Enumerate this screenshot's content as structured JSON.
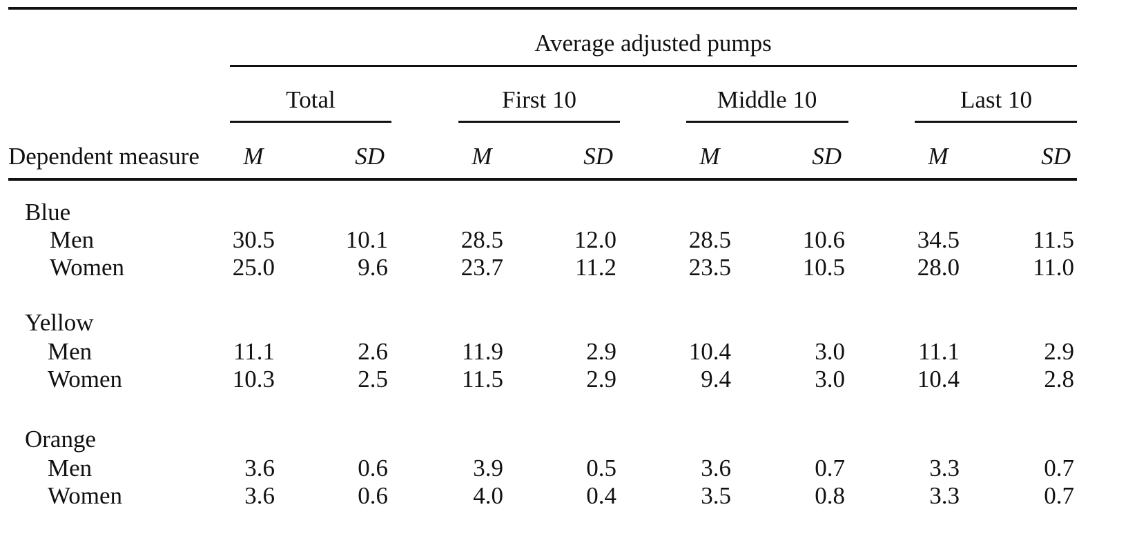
{
  "table": {
    "spanner": "Average adjusted pumps",
    "groups": [
      "Total",
      "First 10",
      "Middle 10",
      "Last 10"
    ],
    "stub_header": "Dependent measure",
    "stat_headers": [
      "M",
      "SD",
      "M",
      "SD",
      "M",
      "SD",
      "M",
      "SD"
    ],
    "sections": [
      {
        "label": "Blue",
        "rows": [
          {
            "label": "Men",
            "values": [
              "30.5",
              "10.1",
              "28.5",
              "12.0",
              "28.5",
              "10.6",
              "34.5",
              "11.5"
            ]
          },
          {
            "label": "Women",
            "values": [
              "25.0",
              "9.6",
              "23.7",
              "11.2",
              "23.5",
              "10.5",
              "28.0",
              "11.0"
            ]
          }
        ]
      },
      {
        "label": "Yellow",
        "rows": [
          {
            "label": "Men",
            "values": [
              "11.1",
              "2.6",
              "11.9",
              "2.9",
              "10.4",
              "3.0",
              "11.1",
              "2.9"
            ]
          },
          {
            "label": "Women",
            "values": [
              "10.3",
              "2.5",
              "11.5",
              "2.9",
              "9.4",
              "3.0",
              "10.4",
              "2.8"
            ]
          }
        ]
      },
      {
        "label": "Orange",
        "rows": [
          {
            "label": "Men",
            "values": [
              "3.6",
              "0.6",
              "3.9",
              "0.5",
              "3.6",
              "0.7",
              "3.3",
              "0.7"
            ]
          },
          {
            "label": "Women",
            "values": [
              "3.6",
              "0.6",
              "4.0",
              "0.4",
              "3.5",
              "0.8",
              "3.3",
              "0.7"
            ]
          }
        ]
      }
    ]
  }
}
